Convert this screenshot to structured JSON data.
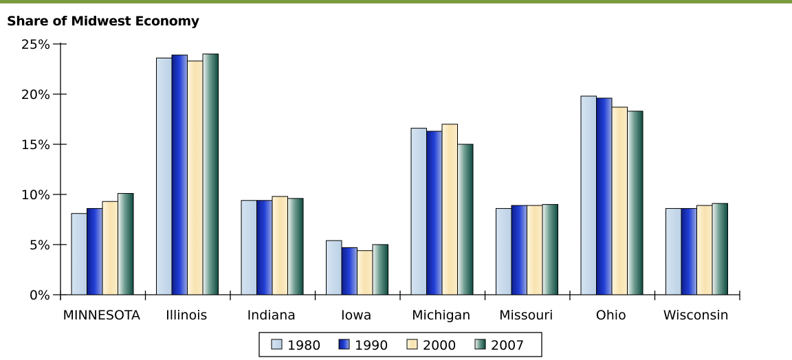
{
  "chart_data": {
    "type": "bar",
    "title": "Share of Midwest Economy",
    "xlabel": "",
    "ylabel": "",
    "categories": [
      "MINNESOTA",
      "Illinois",
      "Indiana",
      "Iowa",
      "Michigan",
      "Missouri",
      "Ohio",
      "Wisconsin"
    ],
    "series": [
      {
        "name": "1980",
        "color": "#c6d9ea",
        "values": [
          8.1,
          23.6,
          9.4,
          5.4,
          16.6,
          8.6,
          19.8,
          8.6
        ]
      },
      {
        "name": "1990",
        "color": "#1a2fc4",
        "values": [
          8.6,
          23.9,
          9.4,
          4.7,
          16.3,
          8.9,
          19.6,
          8.6
        ]
      },
      {
        "name": "2000",
        "color": "#f6dfa2",
        "values": [
          9.3,
          23.3,
          9.8,
          4.4,
          17.0,
          8.9,
          18.7,
          8.9
        ]
      },
      {
        "name": "2007",
        "color": "#1d5e52",
        "values": [
          10.1,
          24.0,
          9.6,
          5.0,
          15.0,
          9.0,
          18.3,
          9.1
        ]
      }
    ],
    "ylim": [
      0,
      25
    ],
    "yticks": [
      "0%",
      "5%",
      "10%",
      "15%",
      "20%",
      "25%"
    ],
    "grid": false,
    "legend_position": "bottom-center"
  }
}
